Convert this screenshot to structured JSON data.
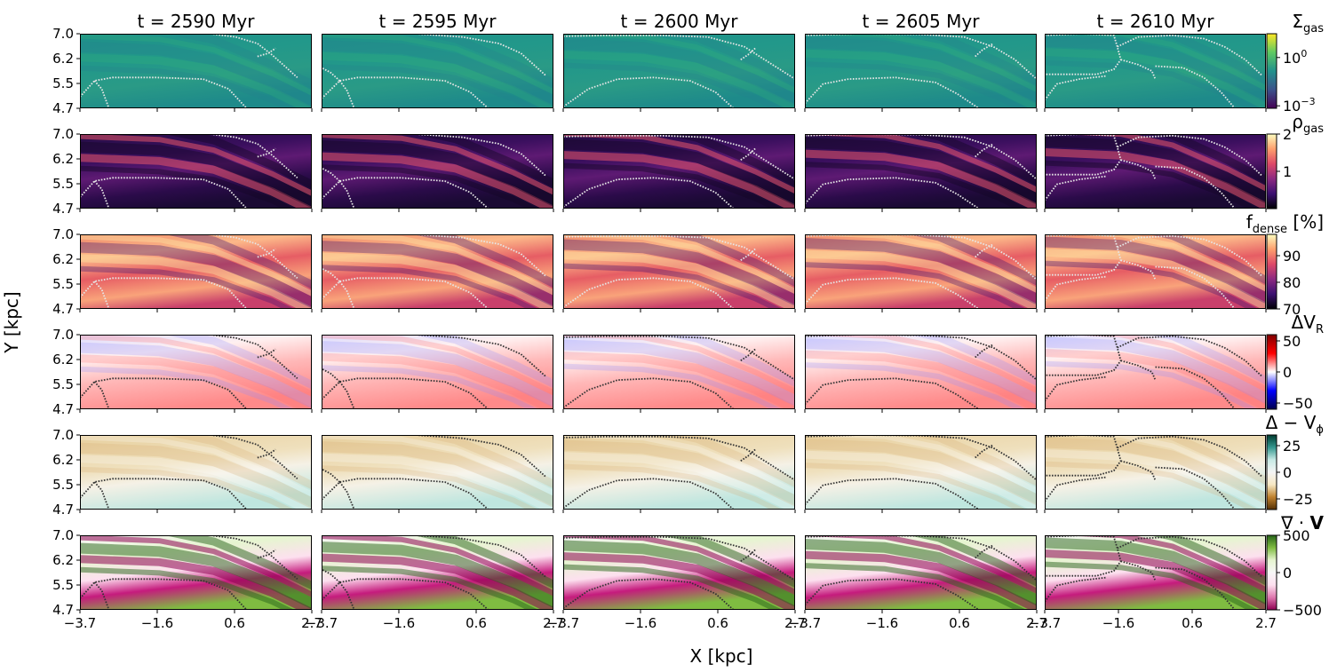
{
  "chart_data": {
    "type": "heatmap",
    "ylabel": "Y [kpc]",
    "xlabel": "X [kpc]",
    "columns": [
      "t = 2590 Myr",
      "t = 2595 Myr",
      "t = 2600 Myr",
      "t = 2605 Myr",
      "t = 2610 Myr"
    ],
    "x_ticks": [
      "−3.7",
      "−1.6",
      "0.6",
      "2.7"
    ],
    "y_ticks": [
      "7.0",
      "6.2",
      "5.5",
      "4.7"
    ],
    "xlim": [
      -3.7,
      2.7
    ],
    "ylim": [
      4.7,
      7.0
    ],
    "rows": [
      {
        "quantity": "gas surface density",
        "label_main": "Σ",
        "label_sub": "gas",
        "label_suffix": "",
        "colormap": "viridis",
        "scale": "log",
        "line_color": "#e6e6e6",
        "cbar_ticks": [
          {
            "value": 1,
            "main": "10",
            "sup": "0"
          },
          {
            "value": 0.001,
            "main": "10",
            "sup": "−3"
          }
        ],
        "cbar_range": [
          0.0007,
          30
        ]
      },
      {
        "quantity": "gas density",
        "label_main": "ρ",
        "label_sub": "gas",
        "label_suffix": "",
        "colormap": "magma",
        "scale": "linear",
        "line_color": "#e6e6e6",
        "cbar_ticks": [
          {
            "value": 2,
            "main": "2",
            "sup": ""
          },
          {
            "value": 1,
            "main": "1",
            "sup": ""
          }
        ],
        "cbar_range": [
          0,
          2
        ]
      },
      {
        "quantity": "dense gas fraction",
        "label_main": "f",
        "label_sub": "dense",
        "label_suffix": " [%]",
        "colormap": "magma",
        "scale": "linear",
        "line_color": "#e6e6e6",
        "cbar_ticks": [
          {
            "value": 90,
            "main": "90",
            "sup": ""
          },
          {
            "value": 80,
            "main": "80",
            "sup": ""
          },
          {
            "value": 70,
            "main": "70",
            "sup": ""
          }
        ],
        "cbar_range": [
          70,
          98
        ]
      },
      {
        "quantity": "radial velocity residual",
        "label_main": "ΔV",
        "label_sub": "R",
        "label_suffix": "",
        "colormap": "seismic",
        "scale": "linear",
        "line_color": "#333333",
        "cbar_ticks": [
          {
            "value": 50,
            "main": "50",
            "sup": ""
          },
          {
            "value": 0,
            "main": "0",
            "sup": ""
          },
          {
            "value": -50,
            "main": "−50",
            "sup": ""
          }
        ],
        "cbar_range": [
          -60,
          60
        ]
      },
      {
        "quantity": "azimuthal velocity residual",
        "label_main": "Δ − V",
        "label_sub": "ϕ",
        "label_suffix": "",
        "colormap": "BrBG",
        "scale": "linear",
        "line_color": "#333333",
        "cbar_ticks": [
          {
            "value": 25,
            "main": "25",
            "sup": ""
          },
          {
            "value": 0,
            "main": "0",
            "sup": ""
          },
          {
            "value": -25,
            "main": "−25",
            "sup": ""
          }
        ],
        "cbar_range": [
          -35,
          35
        ]
      },
      {
        "quantity": "velocity divergence",
        "label_main": "∇ · ",
        "label_bold": "V",
        "label_sub": "",
        "label_suffix": "",
        "colormap": "PiYG",
        "scale": "linear",
        "line_color": "#333333",
        "cbar_ticks": [
          {
            "value": 500,
            "main": "500",
            "sup": ""
          },
          {
            "value": 0,
            "main": "0",
            "sup": ""
          },
          {
            "value": -500,
            "main": "−500",
            "sup": ""
          }
        ],
        "cbar_range": [
          -500,
          500
        ]
      }
    ],
    "spiral_arm_tracks_xy_kpc": [
      [
        [
          [
            -0.1,
            7.0
          ],
          [
            0.6,
            6.9
          ],
          [
            1.2,
            6.7
          ],
          [
            1.6,
            6.35
          ],
          [
            2.0,
            5.95
          ],
          [
            2.3,
            5.65
          ]
        ],
        [
          [
            -3.7,
            5.05
          ],
          [
            -3.3,
            5.55
          ],
          [
            -2.8,
            5.65
          ],
          [
            -1.6,
            5.65
          ],
          [
            -0.3,
            5.6
          ],
          [
            0.4,
            5.3
          ],
          [
            0.9,
            4.7
          ]
        ],
        [
          [
            -3.3,
            5.55
          ],
          [
            -3.1,
            5.3
          ],
          [
            -2.9,
            4.7
          ]
        ],
        [
          [
            1.2,
            6.3
          ],
          [
            1.5,
            6.4
          ],
          [
            1.7,
            6.55
          ]
        ]
      ],
      [
        [
          [
            -1.1,
            7.0
          ],
          [
            0.2,
            6.9
          ],
          [
            1.2,
            6.7
          ],
          [
            1.8,
            6.4
          ],
          [
            2.2,
            6.0
          ],
          [
            2.5,
            5.7
          ]
        ],
        [
          [
            -3.7,
            5.0
          ],
          [
            -3.2,
            5.55
          ],
          [
            -2.7,
            5.65
          ],
          [
            -1.5,
            5.65
          ],
          [
            -0.3,
            5.55
          ],
          [
            0.4,
            5.2
          ],
          [
            0.9,
            4.7
          ]
        ],
        [
          [
            -3.2,
            5.55
          ],
          [
            -3.0,
            5.25
          ],
          [
            -2.8,
            4.7
          ]
        ],
        [
          [
            -3.2,
            5.55
          ],
          [
            -3.45,
            5.8
          ],
          [
            -3.7,
            5.95
          ]
        ]
      ],
      [
        [
          [
            -3.7,
            6.92
          ],
          [
            -2.5,
            6.95
          ],
          [
            -1.0,
            6.95
          ],
          [
            0.3,
            6.9
          ],
          [
            1.3,
            6.6
          ],
          [
            2.0,
            6.1
          ],
          [
            2.7,
            5.6
          ]
        ],
        [
          [
            -3.7,
            4.75
          ],
          [
            -3.0,
            5.3
          ],
          [
            -2.2,
            5.6
          ],
          [
            -1.2,
            5.65
          ],
          [
            -0.2,
            5.55
          ],
          [
            0.5,
            5.2
          ],
          [
            1.0,
            4.7
          ]
        ],
        [
          [
            1.2,
            6.2
          ],
          [
            1.4,
            6.35
          ],
          [
            1.6,
            6.55
          ]
        ]
      ],
      [
        [
          [
            -3.7,
            6.95
          ],
          [
            -2.2,
            7.0
          ],
          [
            -0.5,
            6.98
          ],
          [
            0.7,
            6.9
          ],
          [
            1.5,
            6.6
          ],
          [
            2.1,
            6.2
          ],
          [
            2.7,
            5.6
          ]
        ],
        [
          [
            -3.7,
            4.85
          ],
          [
            -3.2,
            5.45
          ],
          [
            -2.5,
            5.6
          ],
          [
            -1.2,
            5.65
          ],
          [
            -0.1,
            5.5
          ],
          [
            0.5,
            5.15
          ],
          [
            1.1,
            4.7
          ]
        ],
        [
          [
            1.0,
            6.3
          ],
          [
            1.2,
            6.5
          ],
          [
            1.5,
            6.7
          ]
        ]
      ],
      [
        [
          [
            -3.7,
            6.95
          ],
          [
            -2.6,
            7.0
          ],
          [
            -1.7,
            6.95
          ],
          [
            -1.6,
            6.6
          ],
          [
            -1.5,
            6.2
          ],
          [
            -1.7,
            5.9
          ],
          [
            -2.2,
            5.75
          ],
          [
            -3.7,
            5.75
          ]
        ],
        [
          [
            -1.6,
            6.6
          ],
          [
            -1.0,
            6.9
          ],
          [
            0.0,
            6.95
          ],
          [
            0.9,
            6.85
          ],
          [
            1.5,
            6.6
          ],
          [
            2.1,
            6.2
          ],
          [
            2.6,
            5.7
          ]
        ],
        [
          [
            -3.7,
            4.95
          ],
          [
            -3.35,
            5.45
          ],
          [
            -2.7,
            5.6
          ],
          [
            -1.9,
            5.7
          ]
        ],
        [
          [
            -1.5,
            6.2
          ],
          [
            -1.0,
            6.05
          ],
          [
            -0.6,
            5.85
          ],
          [
            -0.5,
            5.6
          ]
        ],
        [
          [
            -0.5,
            6.0
          ],
          [
            0.3,
            5.95
          ],
          [
            0.9,
            5.65
          ],
          [
            1.4,
            5.2
          ],
          [
            1.8,
            4.7
          ]
        ]
      ]
    ]
  }
}
